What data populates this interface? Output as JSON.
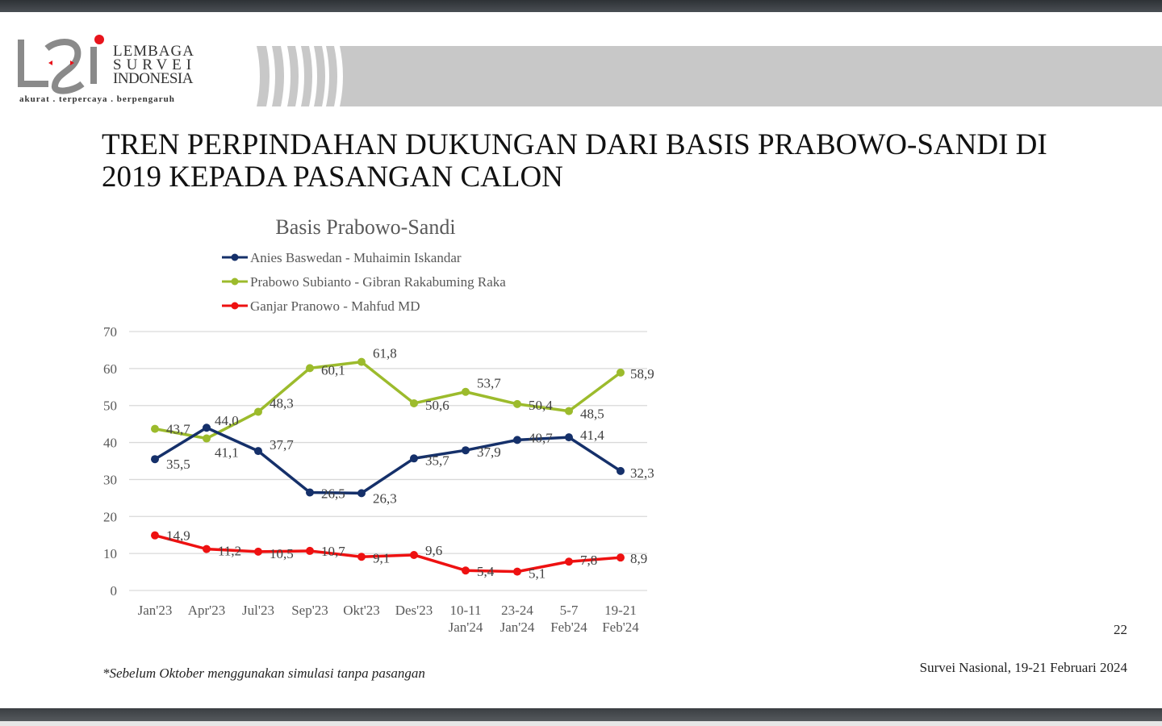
{
  "header": {
    "logo": {
      "line1": "LEMBAGA",
      "line2": "SURVEI",
      "line3": "INDONESIA",
      "tagline": "akurat . terpercaya . berpengaruh"
    }
  },
  "slide": {
    "title_line1": "TREN PERPINDAHAN DUKUNGAN DARI BASIS PRABOWO-SANDI DI",
    "title_line2": "2019 KEPADA PASANGAN CALON",
    "footnote": "*Sebelum Oktober menggunakan simulasi tanpa pasangan",
    "source": "Survei Nasional, 19-21 Februari 2024",
    "page_number": "22"
  },
  "colors": {
    "anies": "#15306a",
    "prabowo": "#9cbb2c",
    "ganjar": "#ee1111",
    "grid": "#d9d9d9",
    "axis_text": "#595959",
    "banner": "#c8c8c8",
    "logo_red": "#e8141c"
  },
  "chart_data": {
    "type": "line",
    "title": "Basis Prabowo-Sandi",
    "xlabel": "",
    "ylabel": "",
    "ylim": [
      0,
      70
    ],
    "yticks": [
      0,
      10,
      20,
      30,
      40,
      50,
      60,
      70
    ],
    "grid": true,
    "legend_position": "top",
    "categories": [
      "Jan'23",
      "Apr'23",
      "Jul'23",
      "Sep'23",
      "Okt'23",
      "Des'23",
      "10-11 Jan'24",
      "23-24 Jan'24",
      "5-7 Feb'24",
      "19-21 Feb'24"
    ],
    "category_lines": [
      [
        "Jan'23",
        ""
      ],
      [
        "Apr'23",
        ""
      ],
      [
        "Jul'23",
        ""
      ],
      [
        "Sep'23",
        ""
      ],
      [
        "Okt'23",
        ""
      ],
      [
        "Des'23",
        ""
      ],
      [
        "10-11",
        "Jan'24"
      ],
      [
        "23-24",
        "Jan'24"
      ],
      [
        "5-7",
        "Feb'24"
      ],
      [
        "19-21",
        "Feb'24"
      ]
    ],
    "series": [
      {
        "name": "Anies Baswedan - Muhaimin Iskandar",
        "color": "#15306a",
        "values": [
          35.5,
          44.0,
          37.7,
          26.5,
          26.3,
          35.7,
          37.9,
          40.7,
          41.4,
          32.3
        ],
        "labels": [
          "35,5",
          "44,0",
          "37,7",
          "26,5",
          "26,3",
          "35,7",
          "37,9",
          "40,7",
          "41,4",
          "32,3"
        ]
      },
      {
        "name": "Prabowo Subianto - Gibran Rakabuming Raka",
        "color": "#9cbb2c",
        "values": [
          43.7,
          41.1,
          48.3,
          60.1,
          61.8,
          50.6,
          53.7,
          50.4,
          48.5,
          58.9
        ],
        "labels": [
          "43,7",
          "41,1",
          "48,3",
          "60,1",
          "61,8",
          "50,6",
          "53,7",
          "50,4",
          "48,5",
          "58,9"
        ]
      },
      {
        "name": "Ganjar Pranowo - Mahfud MD",
        "color": "#ee1111",
        "values": [
          14.9,
          11.2,
          10.5,
          10.7,
          9.1,
          9.6,
          5.4,
          5.1,
          7.8,
          8.9
        ],
        "labels": [
          "14,9",
          "11,2",
          "10,5",
          "10,7",
          "9,1",
          "9,6",
          "5,4",
          "5,1",
          "7,8",
          "8,9"
        ]
      }
    ]
  }
}
